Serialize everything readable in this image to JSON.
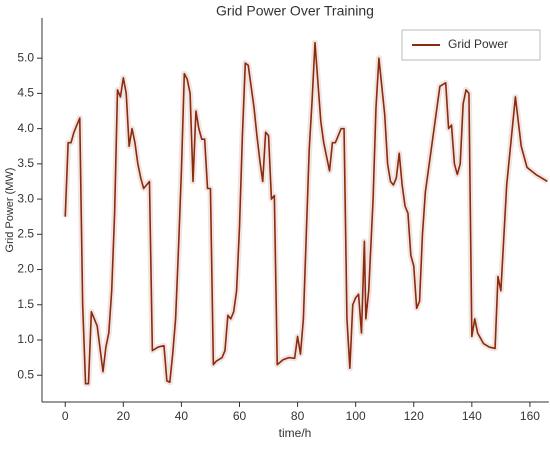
{
  "chart_data": {
    "type": "line",
    "title": "Grid Power Over Training",
    "xlabel": "time/h",
    "ylabel": "Grid Power (MW)",
    "x": [
      0,
      1,
      2,
      3,
      4,
      5,
      6,
      7,
      8,
      9,
      11,
      13,
      14,
      15,
      16,
      17,
      18,
      19,
      20,
      21,
      22,
      23,
      24,
      25,
      26,
      27,
      28,
      29,
      30,
      32,
      34,
      35,
      36,
      37,
      38,
      39,
      40,
      41,
      42,
      43,
      44,
      45,
      46,
      47,
      48,
      49,
      50,
      51,
      52,
      54,
      55,
      56,
      57,
      58,
      59,
      60,
      61,
      62,
      63,
      64,
      65,
      66,
      67,
      68,
      69,
      70,
      71,
      72,
      73,
      75,
      77,
      79,
      80,
      81,
      82,
      83,
      84,
      85,
      86,
      88,
      89,
      90,
      91,
      92,
      93,
      95,
      96,
      97,
      98,
      99,
      100,
      101,
      102,
      103,
      103.5,
      104.5,
      106,
      107,
      108,
      109,
      110,
      111,
      112,
      113,
      114,
      115,
      116,
      117,
      118,
      119,
      120,
      121,
      122,
      123,
      124,
      126,
      128,
      129,
      131,
      132,
      133,
      134,
      135,
      136,
      137,
      138,
      139,
      140,
      141,
      142,
      144,
      146,
      148,
      149,
      150,
      152,
      155,
      157,
      159,
      162,
      166
    ],
    "series": [
      {
        "name": "Grid Power",
        "color": "#8b2a0e",
        "values": [
          2.75,
          3.8,
          3.8,
          3.95,
          4.05,
          4.15,
          1.5,
          0.38,
          0.38,
          1.4,
          1.2,
          0.55,
          0.9,
          1.1,
          1.7,
          2.8,
          4.55,
          4.45,
          4.72,
          4.5,
          3.75,
          4.0,
          3.8,
          3.5,
          3.3,
          3.15,
          3.2,
          3.25,
          0.85,
          0.9,
          0.92,
          0.42,
          0.4,
          0.8,
          1.3,
          2.3,
          3.4,
          4.78,
          4.7,
          4.5,
          3.25,
          4.25,
          4.0,
          3.85,
          3.85,
          3.15,
          3.15,
          0.65,
          0.7,
          0.75,
          0.85,
          1.35,
          1.3,
          1.4,
          1.7,
          2.6,
          3.9,
          4.93,
          4.9,
          4.6,
          4.3,
          3.9,
          3.55,
          3.25,
          3.95,
          3.9,
          3.0,
          3.05,
          0.65,
          0.72,
          0.75,
          0.74,
          1.05,
          0.8,
          1.3,
          2.5,
          3.7,
          4.4,
          5.22,
          4.1,
          3.8,
          3.6,
          3.4,
          3.8,
          3.8,
          4.0,
          4.0,
          1.3,
          0.6,
          1.5,
          1.6,
          1.65,
          1.1,
          2.4,
          1.3,
          1.7,
          3.0,
          4.3,
          5.0,
          4.6,
          4.2,
          3.5,
          3.25,
          3.2,
          3.3,
          3.65,
          3.2,
          2.9,
          2.8,
          2.2,
          2.05,
          1.45,
          1.55,
          2.5,
          3.1,
          3.7,
          4.3,
          4.6,
          4.65,
          4.0,
          4.05,
          3.5,
          3.35,
          3.5,
          4.35,
          4.55,
          4.5,
          1.05,
          1.3,
          1.1,
          0.95,
          0.9,
          0.88,
          1.9,
          1.7,
          3.2,
          4.45,
          3.75,
          3.45,
          3.35,
          3.25
        ]
      }
    ],
    "xlim": [
      -8,
      166.5
    ],
    "ylim": [
      0.12,
      5.57
    ],
    "xticks": [
      0,
      20,
      40,
      60,
      80,
      100,
      120,
      140,
      160
    ],
    "yticks": [
      0.5,
      {
        "value": 1,
        "label": "1.0"
      },
      1.5,
      {
        "value": 2,
        "label": "2.0"
      },
      2.5,
      {
        "value": 3,
        "label": "3.0"
      },
      3.5,
      {
        "value": 4,
        "label": "4.0"
      },
      4.5,
      {
        "value": 5,
        "label": "5.0"
      }
    ],
    "legend": "upper right"
  }
}
